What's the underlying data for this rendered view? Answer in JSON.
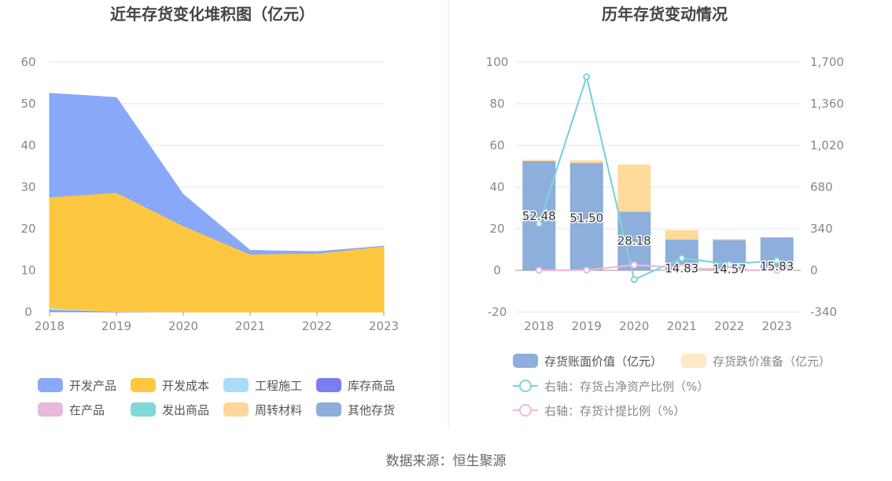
{
  "chart_data": [
    {
      "type": "area",
      "title": "近年存货变化堆积图（亿元）",
      "categories": [
        "2018",
        "2019",
        "2020",
        "2021",
        "2022",
        "2023"
      ],
      "ylim": [
        0,
        60
      ],
      "yticks": [
        0,
        10,
        20,
        30,
        40,
        50,
        60
      ],
      "grid": true,
      "legend_position": "bottom",
      "series": [
        {
          "name": "开发产品",
          "color": "#8aa8f8",
          "values": [
            24.9,
            22.8,
            7.5,
            0.9,
            0.4,
            0.0
          ]
        },
        {
          "name": "开发成本",
          "color": "#fdc83f",
          "values": [
            26.6,
            28.6,
            20.7,
            13.9,
            14.1,
            15.8
          ]
        },
        {
          "name": "工程施工",
          "color": "#a8dcf8",
          "values": [
            0.5,
            0.0,
            0.0,
            0.0,
            0.0,
            0.0
          ]
        },
        {
          "name": "库存商品",
          "color": "#7a7ef0",
          "values": [
            0.3,
            0.1,
            0.0,
            0.0,
            0.0,
            0.0
          ]
        },
        {
          "name": "在产品",
          "color": "#e6b8dc",
          "values": [
            0.2,
            0.0,
            0.0,
            0.0,
            0.0,
            0.0
          ]
        },
        {
          "name": "发出商品",
          "color": "#80d8d8",
          "values": [
            0.0,
            0.0,
            0.0,
            0.0,
            0.0,
            0.0
          ]
        },
        {
          "name": "周转材料",
          "color": "#fdd89a",
          "values": [
            0.0,
            0.0,
            0.0,
            0.0,
            0.0,
            0.0
          ]
        },
        {
          "name": "其他存货",
          "color": "#8eaedc",
          "values": [
            0.0,
            0.0,
            0.0,
            0.0,
            0.0,
            0.0
          ]
        }
      ]
    },
    {
      "type": "bar",
      "title": "历年存货变动情况",
      "categories": [
        "2018",
        "2019",
        "2020",
        "2021",
        "2022",
        "2023"
      ],
      "ylim": [
        -20,
        100
      ],
      "yticks": [
        -20,
        0,
        20,
        40,
        60,
        80,
        100
      ],
      "y2lim": [
        -340,
        1700
      ],
      "y2ticks": [
        "-340",
        "0",
        "340",
        "680",
        "1,020",
        "1,360",
        "1,700"
      ],
      "grid": true,
      "legend_position": "bottom",
      "bars": [
        {
          "name": "存货账面价值（亿元）",
          "color": "#8eaedc",
          "values": [
            52.48,
            51.5,
            28.18,
            14.83,
            14.57,
            15.83
          ],
          "labels": [
            "52.48",
            "51.50",
            "28.18",
            "14.83",
            "14.57",
            "15.83"
          ]
        },
        {
          "name": "存货跌价准备（亿元）",
          "color": "#fedb9b",
          "legend_color": "#fee9c8",
          "values": [
            0.6,
            1.3,
            22.6,
            4.5,
            0.5,
            0.0
          ]
        }
      ],
      "lines": [
        {
          "name": "右轴：存货占净资产比例（%）",
          "color": "#7ed3d8",
          "values": [
            380,
            1580,
            -75,
            100,
            50,
            80
          ]
        },
        {
          "name": "右轴：存货计提比例（%）",
          "color": "#f0b8d8",
          "values": [
            1,
            2,
            44,
            23,
            3,
            0
          ]
        }
      ]
    }
  ],
  "footer": {
    "source": "数据来源：恒生聚源"
  }
}
